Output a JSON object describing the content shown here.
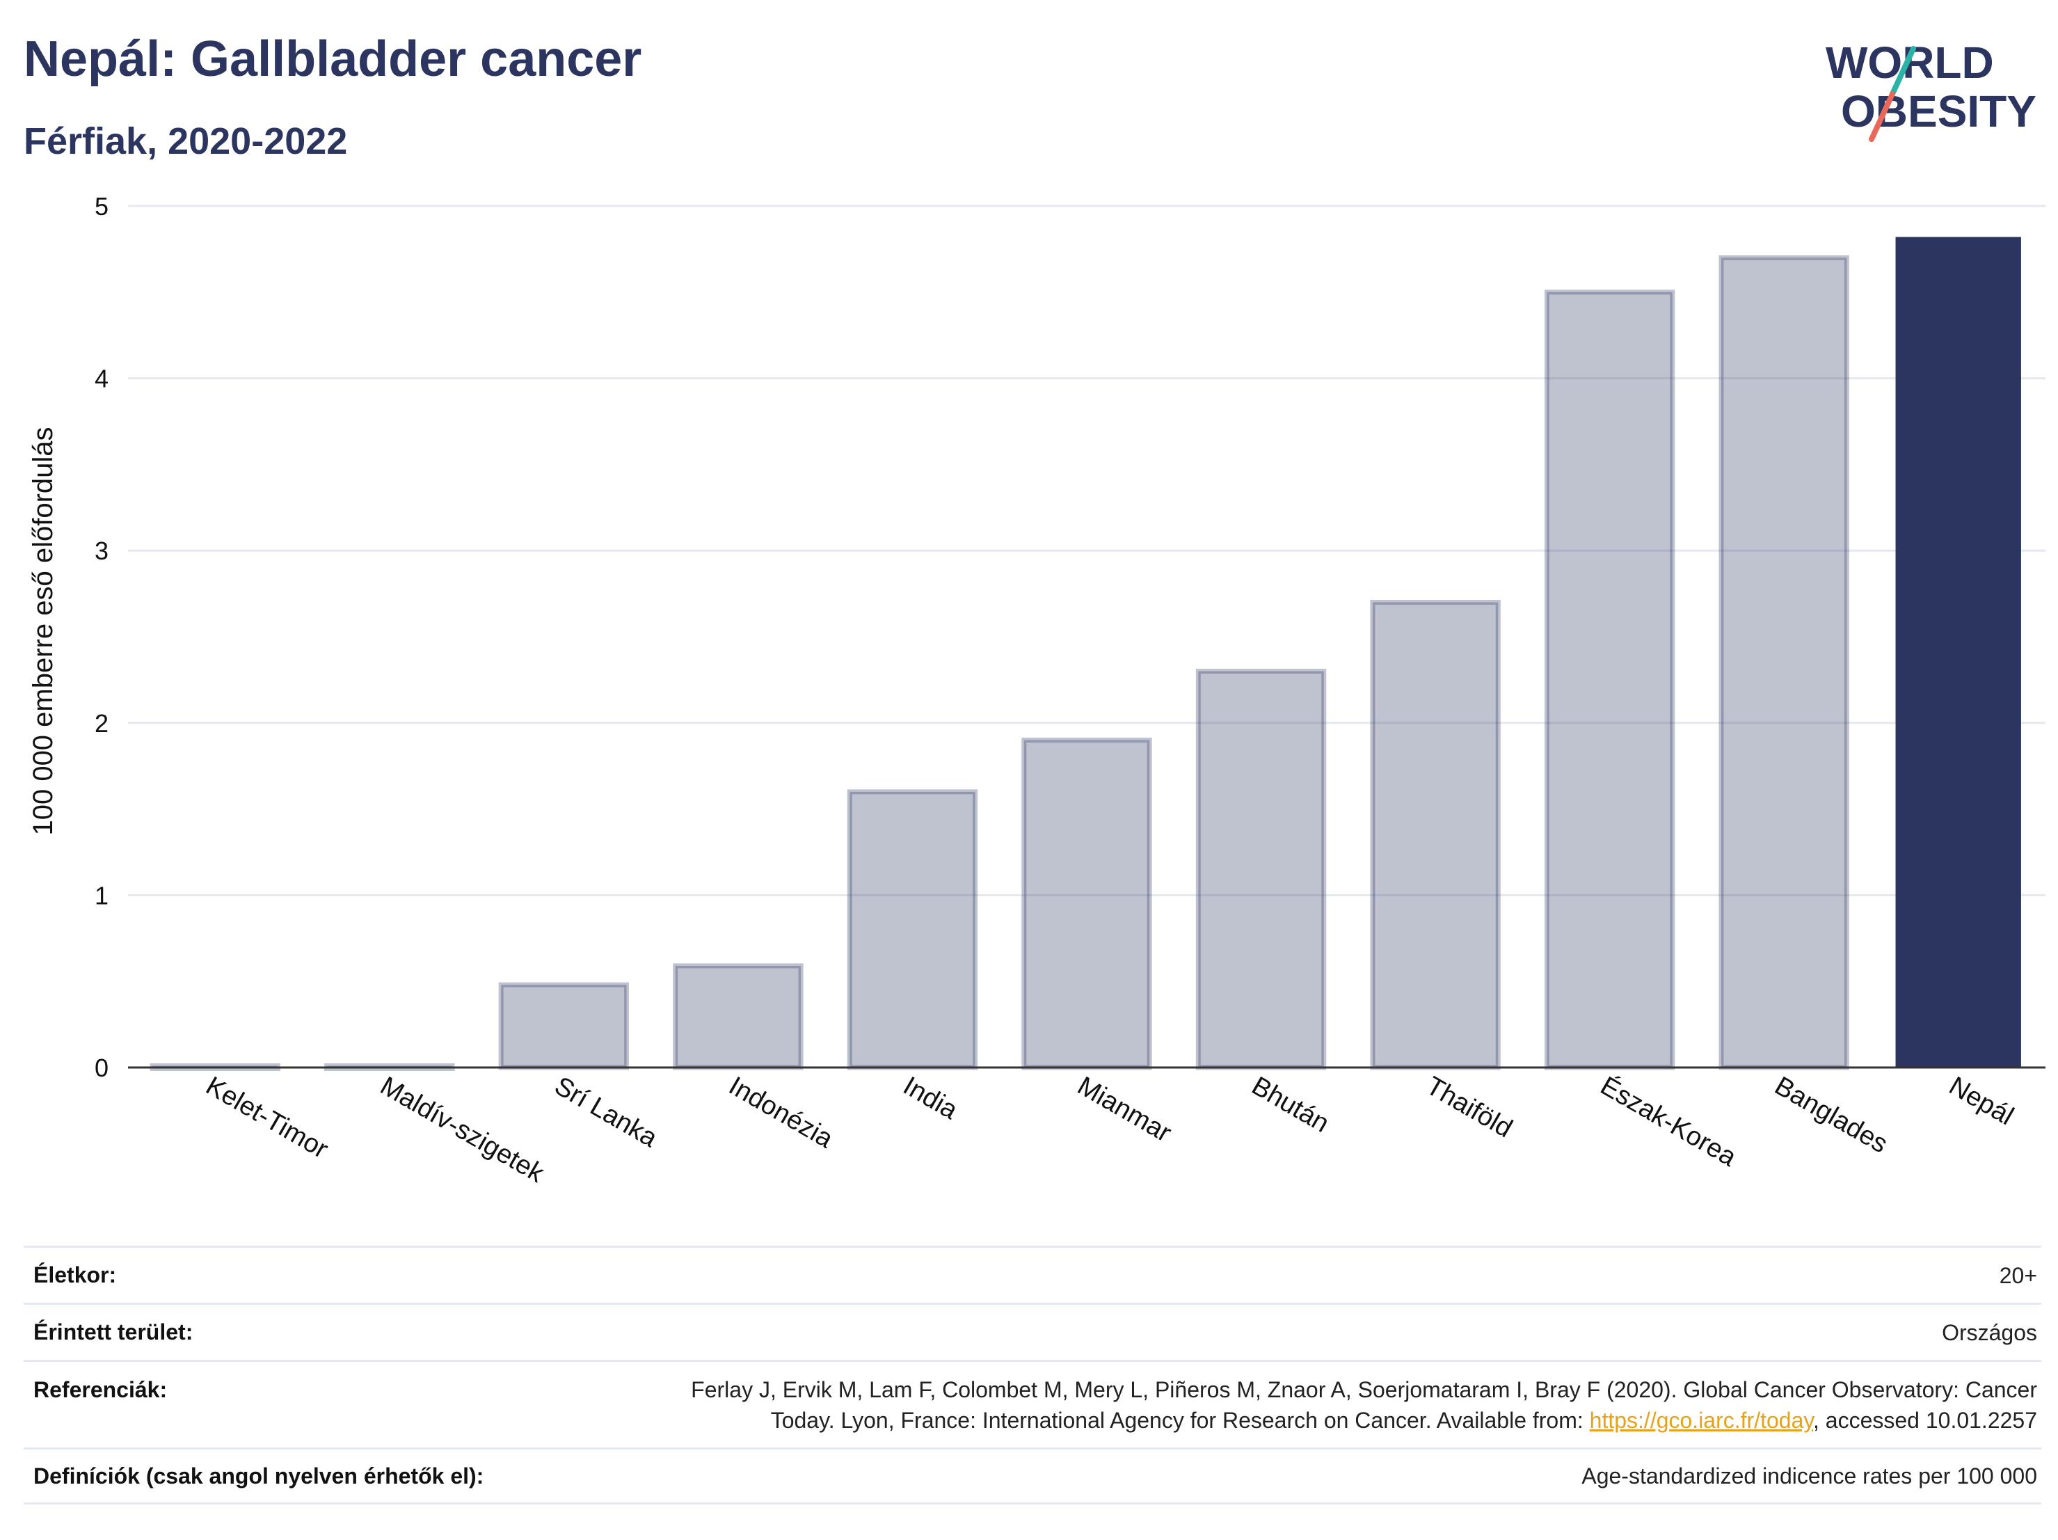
{
  "header": {
    "title": "Nepál: Gallbladder cancer",
    "subtitle": "Férfiak, 2020-2022"
  },
  "logo": {
    "line1": "WORLD",
    "line2": "OBESITY",
    "colors": {
      "text": "#2b3560",
      "slash_top": "#2bb3a6",
      "slash_bottom": "#e8685a"
    }
  },
  "chart_data": {
    "type": "bar",
    "ylabel": "100 000 emberre eső előfordulás",
    "xlabel": "",
    "ylim": [
      0,
      5
    ],
    "yticks": [
      0,
      1,
      2,
      3,
      4,
      5
    ],
    "categories": [
      "Kelet-Timor",
      "Maldív-szigetek",
      "Srí Lanka",
      "Indonézia",
      "India",
      "Mianmar",
      "Bhután",
      "Thaiföld",
      "Észak-Korea",
      "Banglades",
      "Nepál"
    ],
    "values": [
      0.01,
      0.01,
      0.48,
      0.59,
      1.6,
      1.9,
      2.3,
      2.7,
      4.5,
      4.7,
      4.82
    ],
    "highlight": "Nepál",
    "grid": true,
    "colors": {
      "bar": "#2b3560",
      "highlight": "#2b3560",
      "grid": "#e6e8ef",
      "axis": "#333333"
    }
  },
  "meta": {
    "age": {
      "label": "Életkor:",
      "value": "20+"
    },
    "area": {
      "label": "Érintett terület:",
      "value": "Országos"
    },
    "refs": {
      "label": "Referenciák:",
      "line1": "Ferlay J, Ervik M, Lam F, Colombet M, Mery L, Piñeros M, Znaor A, Soerjomataram I, Bray F (2020). Global Cancer Observatory: Cancer",
      "line2_before": "Today. Lyon, France: International Agency for Research on Cancer. Available from: ",
      "link": "https://gco.iarc.fr/today",
      "line2_after": ", accessed 10.01.2257"
    },
    "defs": {
      "label": "Definíciók (csak angol nyelven érhetők el):",
      "value": "Age-standardized indicence rates per 100 000"
    }
  }
}
